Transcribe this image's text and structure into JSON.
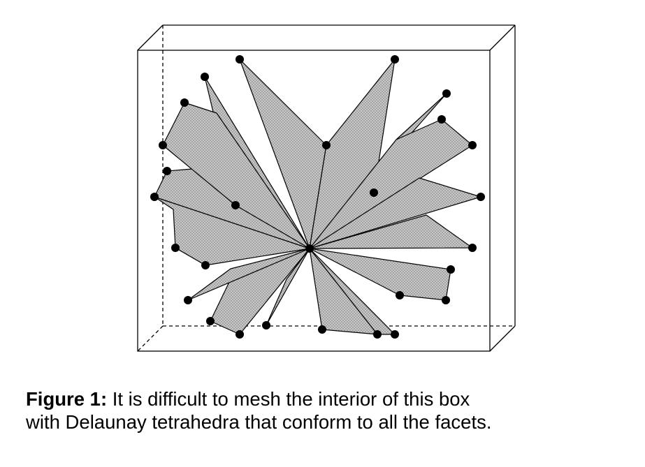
{
  "figure": {
    "caption_label": "Figure 1:",
    "caption_line1": "It is difficult to mesh the interior of this box",
    "caption_line2": "with Delaunay tetrahedra that conform to all the facets."
  },
  "colors": {
    "facet_fill": "#bdbdbd",
    "stroke": "#000000",
    "background": "#ffffff"
  },
  "icons": {
    "vertex": "filled-circle"
  }
}
